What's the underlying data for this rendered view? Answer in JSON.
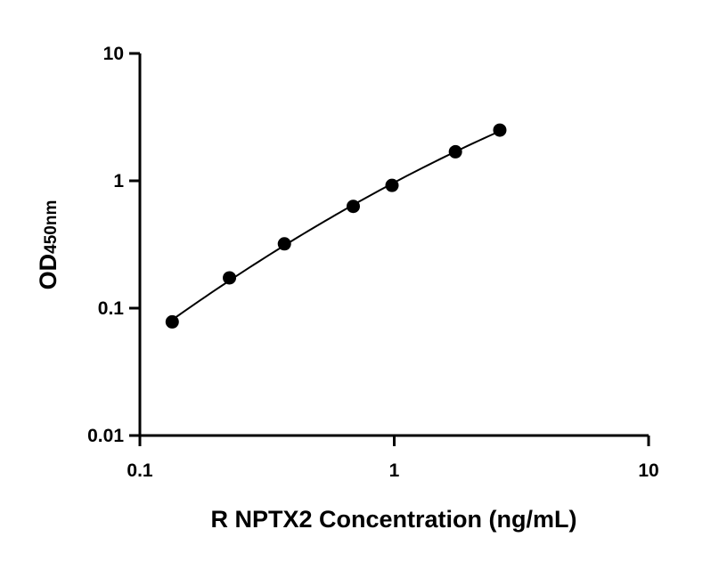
{
  "chart_data": {
    "type": "scatter",
    "title": "",
    "xlabel": "R NPTX2 Concentration (ng/mL)",
    "ylabel": "OD",
    "ylabel_subscript": "450nm",
    "x_scale": "log",
    "y_scale": "log",
    "xlim": [
      0.1,
      10
    ],
    "ylim": [
      0.01,
      10
    ],
    "x_ticks": [
      "0.1",
      "1",
      "10"
    ],
    "y_ticks": [
      "0.01",
      "0.1",
      "1",
      "10"
    ],
    "grid": false,
    "legend": "none",
    "fit_line": true,
    "marker_color": "#000000",
    "line_color": "#000000",
    "x": [
      0.134,
      0.225,
      0.37,
      0.69,
      0.98,
      1.74,
      2.6
    ],
    "y": [
      0.078,
      0.173,
      0.32,
      0.63,
      0.92,
      1.69,
      2.5
    ]
  }
}
